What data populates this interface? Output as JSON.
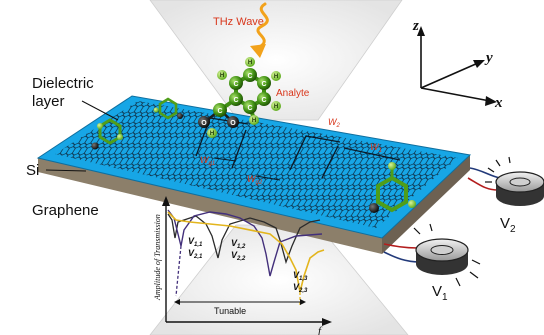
{
  "labels": {
    "thz_wave": "THz Wave",
    "analyte": "Analyte",
    "dielectric_line1": "Dielectric",
    "dielectric_line2": "layer",
    "si": "Si",
    "graphene": "Graphene",
    "w2": "W",
    "w2_sub": "2",
    "w1": "W",
    "w1_sub": "1",
    "wg1": "W",
    "wg1_sub": "g1",
    "wg2": "W",
    "wg2_sub": "g2"
  },
  "axes": {
    "z": "z",
    "y": "y",
    "x": "x"
  },
  "atoms": {
    "hydrogen": "H",
    "carbon": "C",
    "oxygen": "O"
  },
  "sources": {
    "v1": {
      "base": "V",
      "sub": "1"
    },
    "v2": {
      "base": "V",
      "sub": "2"
    }
  },
  "spectrum": {
    "ylabel": "Amplitude of Transmission",
    "xlabel": "f",
    "tunable_label": "Tunable",
    "labels": [
      {
        "top": "V",
        "top_sub": "1,1",
        "bottom": "V",
        "bottom_sub": "2,1"
      },
      {
        "top": "V",
        "top_sub": "1,2",
        "bottom": "V",
        "bottom_sub": "2,2"
      },
      {
        "top": "V",
        "top_sub": "1,3",
        "bottom": "V",
        "bottom_sub": "2,3"
      }
    ]
  },
  "colors": {
    "thz_label": "#d8361b",
    "wave": "#f2a21b",
    "surface": "#17a6e6",
    "lattice": "#0d2336",
    "si_side": "#8c7f6a",
    "si_front": "#6d6152",
    "molecule_carbon": "#3f8f12",
    "molecule_hydrogen": "#76c225",
    "oxygen": "#1d1d1d",
    "spectrum_black": "#2b2b2b",
    "spectrum_purple": "#43307b",
    "spectrum_yellow": "#e3b51d"
  }
}
